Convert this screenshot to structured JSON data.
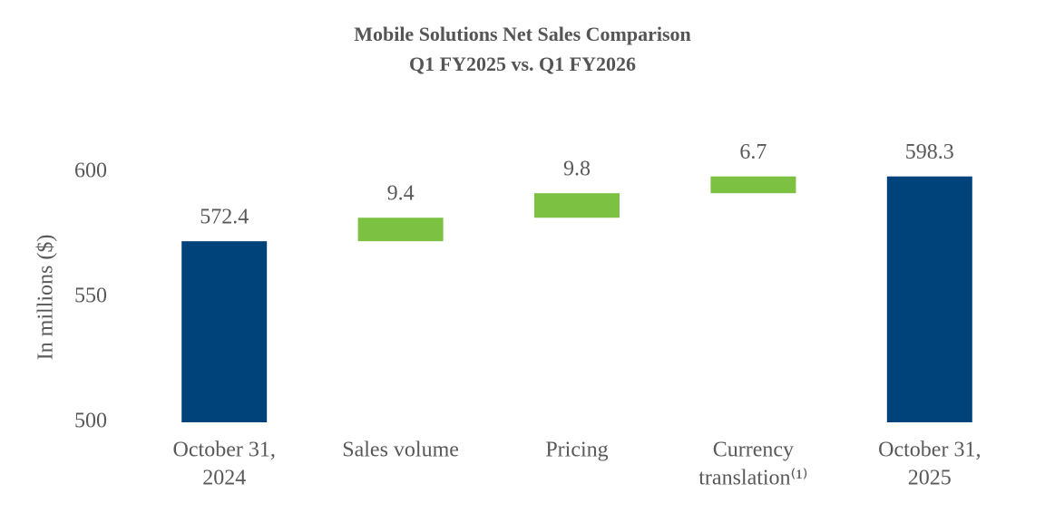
{
  "chart_data": {
    "type": "waterfall",
    "title": [
      "Mobile Solutions Net Sales Comparison",
      "Q1 FY2025 vs. Q1 FY2026"
    ],
    "y_label": "In millions ($)",
    "categories": [
      [
        "October 31,",
        "2024"
      ],
      [
        "Sales volume"
      ],
      [
        "Pricing"
      ],
      [
        "Currency",
        "translation⁽¹⁾"
      ],
      [
        "October 31,",
        "2025"
      ]
    ],
    "values": [
      572.4,
      9.4,
      9.8,
      6.7,
      598.3
    ],
    "measure": [
      "absolute",
      "relative",
      "relative",
      "relative",
      "absolute"
    ],
    "colors": {
      "absolute": "#00427a",
      "relative": "#7dc142"
    },
    "ylim": [
      500,
      600
    ],
    "yticks": [
      500,
      550,
      600
    ],
    "grid": false
  }
}
